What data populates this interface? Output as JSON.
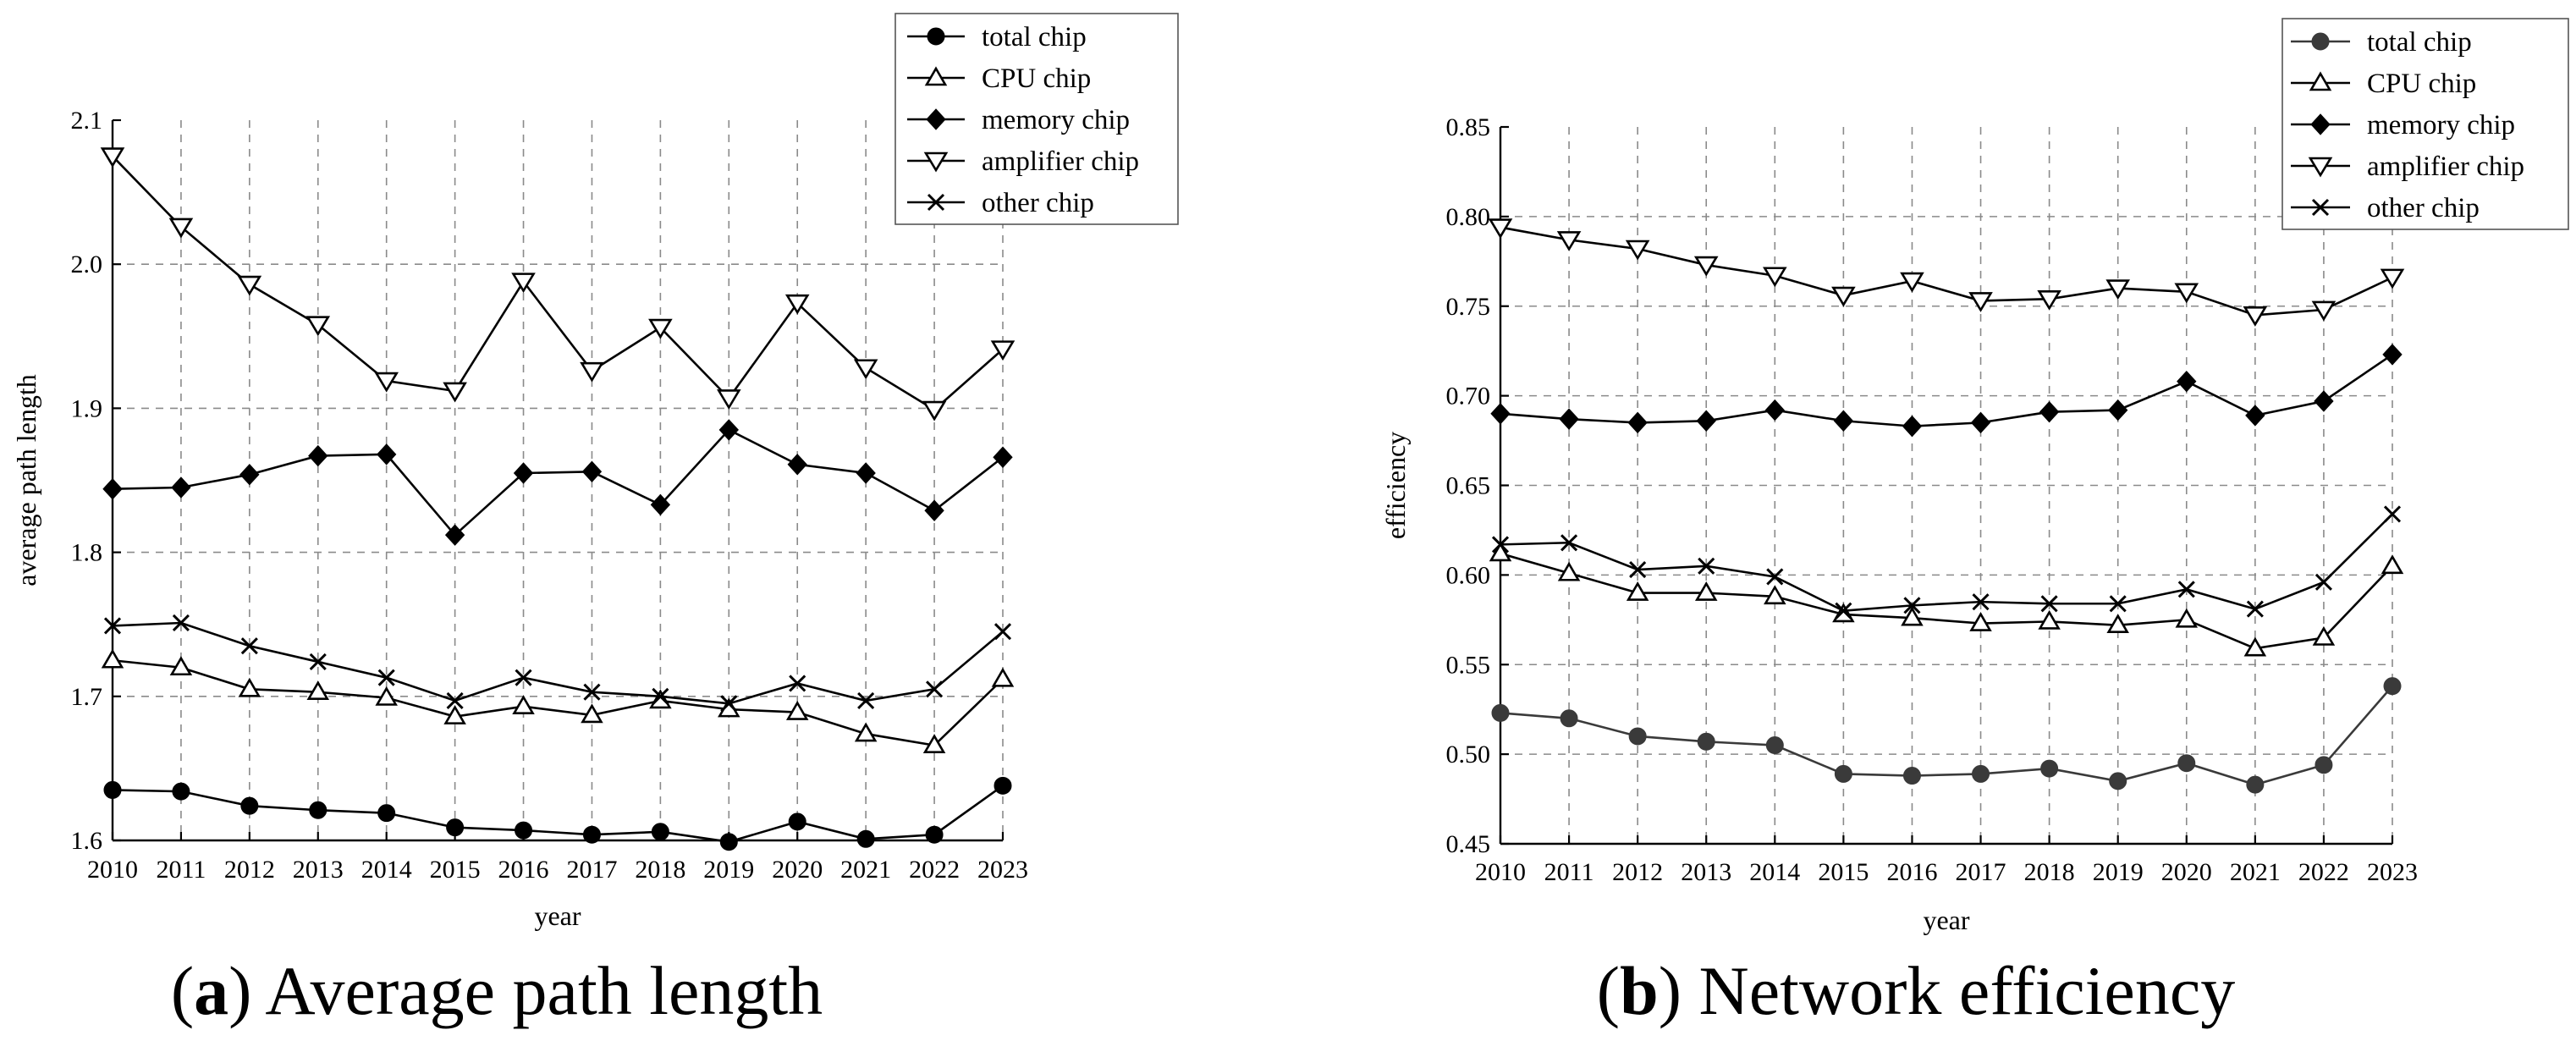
{
  "chart_data": [
    {
      "type": "line",
      "caption_letter": "a",
      "caption_text": "Average path length",
      "xlabel": "year",
      "ylabel": "average path length",
      "x": [
        2010,
        2011,
        2012,
        2013,
        2014,
        2015,
        2016,
        2017,
        2018,
        2019,
        2020,
        2021,
        2022,
        2023
      ],
      "ylim": [
        1.6,
        2.1
      ],
      "yticks": [
        "1.6",
        "1.7",
        "1.8",
        "1.9",
        "2.0",
        "2.1"
      ],
      "grid": true,
      "legend_position": "top-right",
      "series": [
        {
          "name": "total chip",
          "marker": "circle-filled",
          "color": "#000000",
          "values": [
            1.635,
            1.634,
            1.624,
            1.621,
            1.619,
            1.609,
            1.607,
            1.604,
            1.606,
            1.599,
            1.613,
            1.601,
            1.604,
            1.638
          ]
        },
        {
          "name": "CPU chip",
          "marker": "triangle-up-open",
          "color": "#000000",
          "values": [
            1.725,
            1.72,
            1.705,
            1.703,
            1.699,
            1.686,
            1.693,
            1.687,
            1.697,
            1.691,
            1.689,
            1.674,
            1.666,
            1.712
          ]
        },
        {
          "name": "memory chip",
          "marker": "diamond-filled",
          "color": "#000000",
          "values": [
            1.844,
            1.845,
            1.854,
            1.867,
            1.868,
            1.812,
            1.855,
            1.856,
            1.833,
            1.885,
            1.861,
            1.855,
            1.829,
            1.866
          ]
        },
        {
          "name": "amplifier chip",
          "marker": "triangle-down-open",
          "color": "#000000",
          "values": [
            2.075,
            2.026,
            1.986,
            1.958,
            1.919,
            1.912,
            1.988,
            1.926,
            1.956,
            1.907,
            1.973,
            1.928,
            1.899,
            1.941
          ]
        },
        {
          "name": "other chip",
          "marker": "x",
          "color": "#000000",
          "values": [
            1.749,
            1.751,
            1.735,
            1.724,
            1.713,
            1.697,
            1.713,
            1.703,
            1.7,
            1.695,
            1.709,
            1.697,
            1.705,
            1.745
          ]
        }
      ]
    },
    {
      "type": "line",
      "caption_letter": "b",
      "caption_text": "Network efficiency",
      "xlabel": "year",
      "ylabel": "efficiency",
      "x": [
        2010,
        2011,
        2012,
        2013,
        2014,
        2015,
        2016,
        2017,
        2018,
        2019,
        2020,
        2021,
        2022,
        2023
      ],
      "ylim": [
        0.45,
        0.85
      ],
      "yticks": [
        "0.45",
        "0.50",
        "0.55",
        "0.60",
        "0.65",
        "0.70",
        "0.75",
        "0.80",
        "0.85"
      ],
      "grid": true,
      "legend_position": "top-right",
      "series": [
        {
          "name": "total chip",
          "marker": "circle-filled",
          "color": "#3a3a3a",
          "values": [
            0.523,
            0.52,
            0.51,
            0.507,
            0.505,
            0.489,
            0.488,
            0.489,
            0.492,
            0.485,
            0.495,
            0.483,
            0.494,
            0.538
          ]
        },
        {
          "name": "CPU chip",
          "marker": "triangle-up-open",
          "color": "#000000",
          "values": [
            0.612,
            0.601,
            0.59,
            0.59,
            0.588,
            0.578,
            0.576,
            0.573,
            0.574,
            0.572,
            0.575,
            0.559,
            0.565,
            0.605
          ]
        },
        {
          "name": "memory chip",
          "marker": "diamond-filled",
          "color": "#000000",
          "values": [
            0.69,
            0.687,
            0.685,
            0.686,
            0.692,
            0.686,
            0.683,
            0.685,
            0.691,
            0.692,
            0.708,
            0.689,
            0.697,
            0.723
          ]
        },
        {
          "name": "amplifier chip",
          "marker": "triangle-down-open",
          "color": "#000000",
          "values": [
            0.794,
            0.787,
            0.782,
            0.773,
            0.767,
            0.756,
            0.764,
            0.753,
            0.754,
            0.76,
            0.758,
            0.745,
            0.748,
            0.766
          ]
        },
        {
          "name": "other chip",
          "marker": "x",
          "color": "#000000",
          "values": [
            0.617,
            0.618,
            0.603,
            0.605,
            0.599,
            0.58,
            0.583,
            0.585,
            0.584,
            0.584,
            0.592,
            0.581,
            0.596,
            0.634
          ]
        }
      ]
    }
  ]
}
